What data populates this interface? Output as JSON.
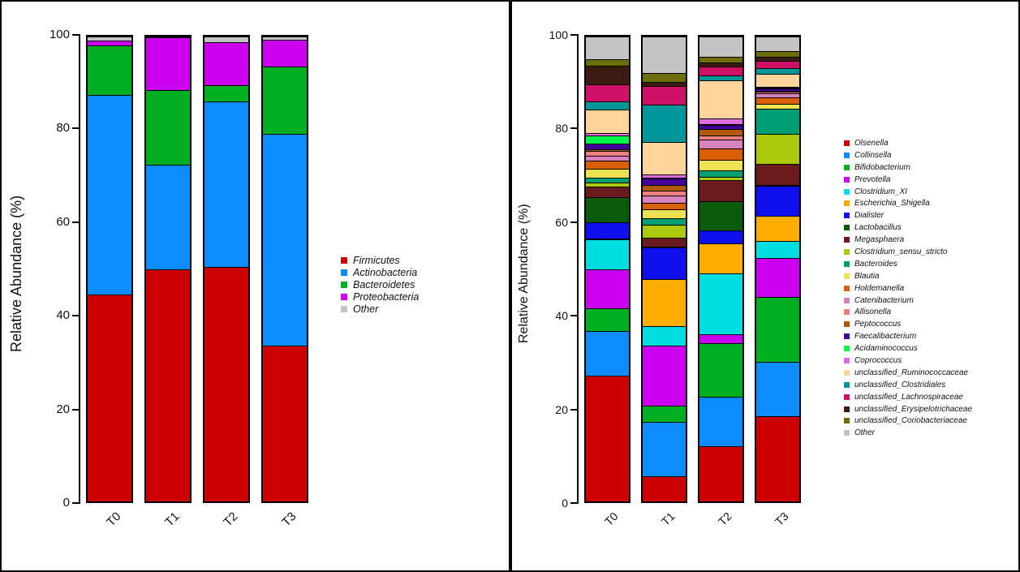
{
  "figure": {
    "background": "#FFFFFF",
    "border_color": "#000000",
    "axis_color": "#000000",
    "text_color": "#111111"
  },
  "chart_data": [
    {
      "type": "bar",
      "stacked": true,
      "title": "",
      "xlabel": "",
      "ylabel": "Relative Abundance (%)",
      "ylim": [
        0,
        100
      ],
      "yticks": [
        0,
        20,
        40,
        60,
        80,
        100
      ],
      "grid": false,
      "legend_position": "right",
      "categories": [
        "T0",
        "T1",
        "T2",
        "T3"
      ],
      "series": [
        {
          "name": "Firmicutes",
          "color": "#CC0000",
          "values": [
            44.5,
            50.0,
            50.5,
            33.5
          ]
        },
        {
          "name": "Actinobacteria",
          "color": "#0C8CFF",
          "values": [
            43.0,
            22.5,
            35.5,
            45.5
          ]
        },
        {
          "name": "Bacteroidetes",
          "color": "#00AE22",
          "values": [
            10.5,
            16.0,
            3.5,
            14.5
          ]
        },
        {
          "name": "Proteobacteria",
          "color": "#CC00F0",
          "values": [
            1.2,
            11.3,
            9.2,
            5.8
          ]
        },
        {
          "name": "Other",
          "color": "#C4C4C4",
          "values": [
            0.8,
            0.2,
            1.3,
            0.7
          ]
        }
      ]
    },
    {
      "type": "bar",
      "stacked": true,
      "title": "",
      "xlabel": "",
      "ylabel": "Relative Abundance (%)",
      "ylim": [
        0,
        100
      ],
      "yticks": [
        0,
        20,
        40,
        60,
        80,
        100
      ],
      "grid": false,
      "legend_position": "right",
      "categories": [
        "T0",
        "T1",
        "T2",
        "T3"
      ],
      "series": [
        {
          "name": "Olsenella",
          "color": "#CC0000",
          "values": [
            27.0,
            5.5,
            11.8,
            18.4
          ]
        },
        {
          "name": "Collinsella",
          "color": "#0C8CFF",
          "values": [
            9.7,
            11.7,
            10.8,
            11.6
          ]
        },
        {
          "name": "Bifidobacterium",
          "color": "#00AE22",
          "values": [
            4.9,
            3.4,
            11.5,
            14.1
          ]
        },
        {
          "name": "Prevotella",
          "color": "#CC00F0",
          "values": [
            8.4,
            13.0,
            1.9,
            8.4
          ]
        },
        {
          "name": "Clostridium_XI",
          "color": "#00DDE0",
          "values": [
            6.3,
            4.2,
            13.0,
            3.6
          ]
        },
        {
          "name": "Escherichia_Shigella",
          "color": "#FFAC00",
          "values": [
            0.2,
            10.0,
            6.6,
            5.4
          ]
        },
        {
          "name": "Dialister",
          "color": "#0F0FF0",
          "values": [
            3.6,
            6.9,
            2.8,
            6.6
          ]
        },
        {
          "name": "Lactobacillus",
          "color": "#0A5C0A",
          "values": [
            5.3,
            0.1,
            6.2,
            0.1
          ]
        },
        {
          "name": "Megasphaera",
          "color": "#6B1B1B",
          "values": [
            2.3,
            1.9,
            4.5,
            4.4
          ]
        },
        {
          "name": "Clostridium_sensu_stricto",
          "color": "#AEC80C",
          "values": [
            0.9,
            2.9,
            0.8,
            6.5
          ]
        },
        {
          "name": "Bacteroides",
          "color": "#009E73",
          "values": [
            1.1,
            1.4,
            1.3,
            5.5
          ]
        },
        {
          "name": "Blautia",
          "color": "#EDE252",
          "values": [
            1.9,
            1.8,
            2.4,
            1.0
          ]
        },
        {
          "name": "Holdemanella",
          "color": "#D95F02",
          "values": [
            1.7,
            1.5,
            2.4,
            1.5
          ]
        },
        {
          "name": "Catenibacterium",
          "color": "#D983BE",
          "values": [
            1.0,
            1.6,
            1.8,
            0.8
          ]
        },
        {
          "name": "Allisonella",
          "color": "#F08080",
          "values": [
            1.1,
            1.0,
            1.0,
            0.3
          ]
        },
        {
          "name": "Peptococcus",
          "color": "#B05A0B",
          "values": [
            0.4,
            1.2,
            1.3,
            0.3
          ]
        },
        {
          "name": "Faecalibacterium",
          "color": "#44009B",
          "values": [
            1.2,
            1.4,
            0.9,
            0.4
          ]
        },
        {
          "name": "Acidaminococcus",
          "color": "#00F84A",
          "values": [
            1.8,
            0.1,
            0.1,
            0.1
          ]
        },
        {
          "name": "Coprococcus",
          "color": "#E06CE0",
          "values": [
            0.4,
            0.7,
            1.2,
            0.1
          ]
        },
        {
          "name": "unclassified_Ruminococcaceae",
          "color": "#FFD59B",
          "values": [
            5.1,
            7.0,
            8.3,
            2.9
          ]
        },
        {
          "name": "unclassified_Clostridiales",
          "color": "#00979B",
          "values": [
            1.8,
            8.1,
            1.0,
            1.1
          ]
        },
        {
          "name": "unclassified_Lachnospiraceae",
          "color": "#CE1167",
          "values": [
            3.6,
            4.0,
            2.0,
            1.6
          ]
        },
        {
          "name": "unclassified_Erysipelotrichaceae",
          "color": "#3C1B12",
          "values": [
            4.0,
            0.8,
            0.8,
            1.0
          ]
        },
        {
          "name": "unclassified_Coriobacteriaceae",
          "color": "#6D6D08",
          "values": [
            1.4,
            2.0,
            1.3,
            1.2
          ]
        },
        {
          "name": "Other",
          "color": "#C4C4C4",
          "values": [
            4.9,
            7.8,
            4.3,
            3.1
          ]
        }
      ]
    }
  ]
}
